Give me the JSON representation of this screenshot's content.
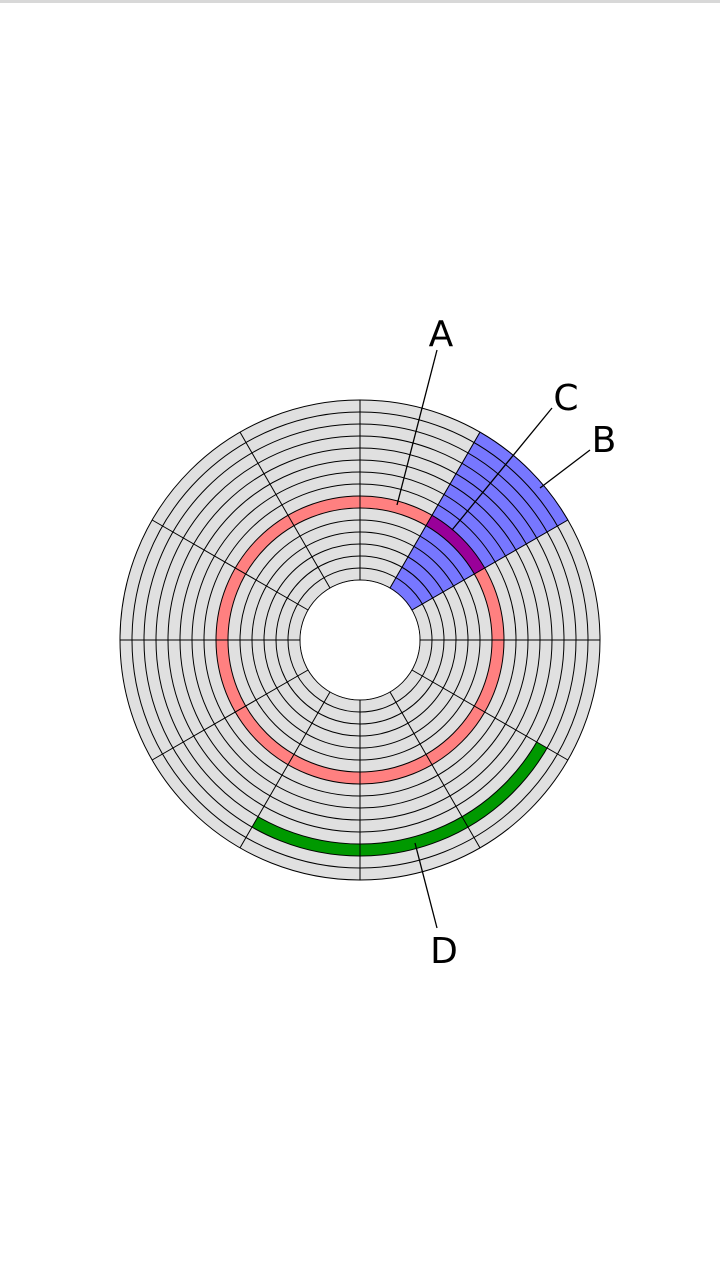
{
  "labels": [
    "A",
    "B",
    "C",
    "D"
  ]
}
